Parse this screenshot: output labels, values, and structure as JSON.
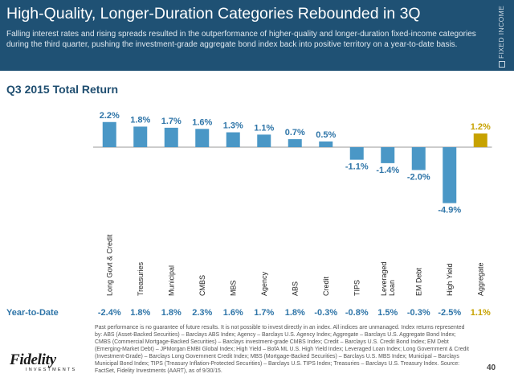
{
  "header": {
    "title": "High-Quality, Longer-Duration Categories Rebounded in 3Q",
    "subtitle": "Falling interest rates and rising spreads resulted in the outperformance of higher-quality and longer-duration fixed-income categories during the third quarter, pushing the investment-grade aggregate bond index back into positive territory on a year-to-date basis.",
    "side_label": "FIXED INCOME"
  },
  "colors": {
    "header_bg": "#1f5174",
    "bar": "#4a97c6",
    "aggregate_bar": "#c7a200",
    "label": "#2f75a8"
  },
  "chart_data": {
    "type": "bar",
    "title": "Q3 2015 Total Return",
    "categories": [
      "Long Govt & Credit",
      "Treasuries",
      "Municipal",
      "CMBS",
      "MBS",
      "Agency",
      "ABS",
      "Credit",
      "TIPS",
      "Leveraged Loan",
      "EM Debt",
      "High Yield",
      "Aggregate"
    ],
    "values": [
      2.2,
      1.8,
      1.7,
      1.6,
      1.3,
      1.1,
      0.7,
      0.5,
      -1.1,
      -1.4,
      -2.0,
      -4.9,
      1.2
    ],
    "value_labels": [
      "2.2%",
      "1.8%",
      "1.7%",
      "1.6%",
      "1.3%",
      "1.1%",
      "0.7%",
      "0.5%",
      "-1.1%",
      "-1.4%",
      "-2.0%",
      "-4.9%",
      "1.2%"
    ],
    "highlight": "Aggregate",
    "ytd_label": "Year-to-Date",
    "ytd_values": [
      "-2.4%",
      "1.8%",
      "1.8%",
      "2.3%",
      "1.6%",
      "1.7%",
      "1.8%",
      "-0.3%",
      "-0.8%",
      "1.5%",
      "-0.3%",
      "-2.5%",
      "1.1%"
    ],
    "ylim": [
      -4.9,
      2.2
    ],
    "grid": false
  },
  "footnote": "Past performance is no guarantee of future results. It is not possible to invest directly in an index. All indices are unmanaged. Index returns represented by: ABS (Asset-Backed Securities) – Barclays ABS Index; Agency – Barclays U.S. Agency Index; Aggregate – Barclays U.S. Aggregate Bond Index; CMBS (Commercial Mortgage-Backed Securities) – Barclays investment-grade CMBS Index; Credit – Barclays U.S. Credit Bond Index; EM Debt (Emerging-Market Debt) – JPMorgan EMBI Global Index; High Yield – BofA ML U.S. High Yield Index; Leveraged Loan Index; Long Government & Credit (Investment-Grade) – Barclays Long Government Credit Index; MBS (Mortgage-Backed Securities) – Barclays U.S. MBS Index; Municipal – Barclays Municipal Bond Index; TIPS (Treasury Inflation-Protected Securities) – Barclays U.S. TIPS Index; Treasuries – Barclays U.S. Treasury Index. Source: FactSet, Fidelity Investments (AART), as of 9/30/15.",
  "logo": {
    "name": "Fidelity",
    "sub": "INVESTMENTS"
  },
  "page_number": "40"
}
